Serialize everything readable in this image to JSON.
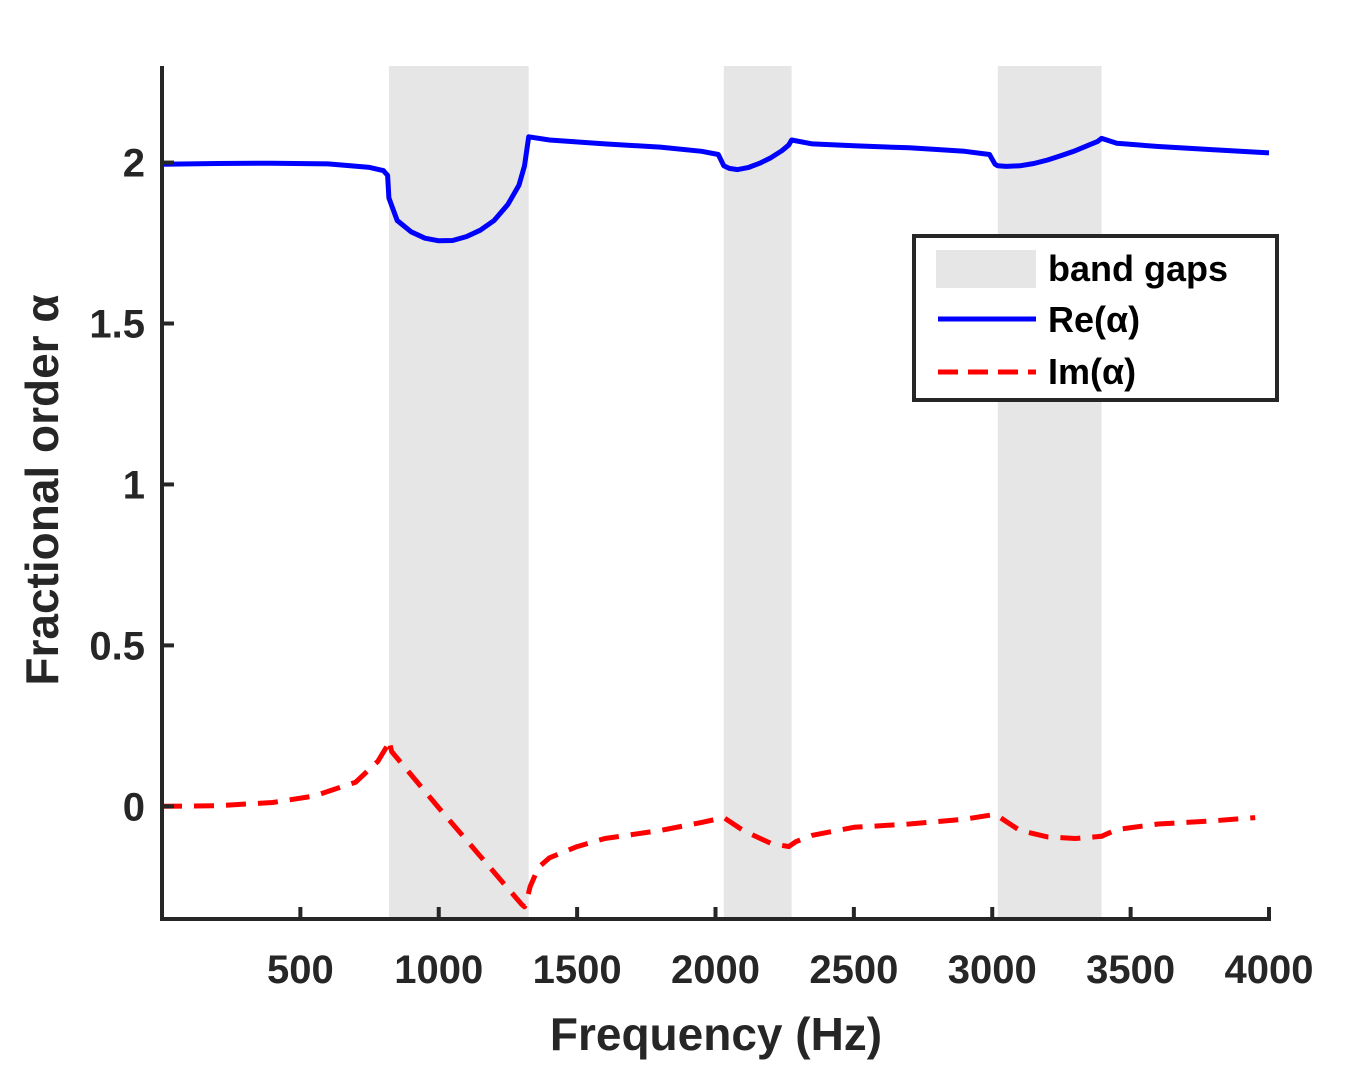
{
  "chart_data": {
    "type": "line",
    "title": "",
    "xlabel": "Frequency (Hz)",
    "ylabel": "Fractional order α",
    "xlim": [
      0,
      4000
    ],
    "ylim": [
      -0.35,
      2.3
    ],
    "xticks": [
      500,
      1000,
      1500,
      2000,
      2500,
      3000,
      3500,
      4000
    ],
    "xtick_labels": [
      "500",
      "1000",
      "1500",
      "2000",
      "2500",
      "3000",
      "3500",
      "4000"
    ],
    "yticks": [
      0,
      0.5,
      1,
      1.5,
      2
    ],
    "ytick_labels": [
      "0",
      "0.5",
      "1",
      "1.5",
      "2"
    ],
    "grid": false,
    "legend_position": "top-right",
    "band_gaps": {
      "name": "band gaps",
      "color": "#e6e6e6",
      "ranges": [
        [
          820,
          1325
        ],
        [
          2030,
          2275
        ],
        [
          3020,
          3395
        ]
      ]
    },
    "series": [
      {
        "name": "Re(α)",
        "color": "#0000ff",
        "style": "solid",
        "x": [
          0,
          200,
          400,
          600,
          750,
          800,
          815,
          820,
          850,
          900,
          950,
          1000,
          1050,
          1100,
          1150,
          1200,
          1250,
          1290,
          1310,
          1325,
          1400,
          1600,
          1800,
          1950,
          2010,
          2030,
          2050,
          2080,
          2120,
          2160,
          2200,
          2240,
          2265,
          2275,
          2350,
          2500,
          2700,
          2900,
          2990,
          3010,
          3020,
          3050,
          3100,
          3150,
          3200,
          3250,
          3300,
          3350,
          3380,
          3395,
          3450,
          3600,
          3800,
          4000
        ],
        "y": [
          1.995,
          1.997,
          1.998,
          1.996,
          1.985,
          1.975,
          1.96,
          1.89,
          1.82,
          1.785,
          1.765,
          1.757,
          1.758,
          1.77,
          1.79,
          1.82,
          1.87,
          1.93,
          1.99,
          2.08,
          2.07,
          2.058,
          2.048,
          2.035,
          2.025,
          1.99,
          1.982,
          1.978,
          1.985,
          1.998,
          2.015,
          2.037,
          2.055,
          2.07,
          2.058,
          2.052,
          2.046,
          2.035,
          2.025,
          1.995,
          1.99,
          1.988,
          1.99,
          1.997,
          2.008,
          2.022,
          2.037,
          2.055,
          2.065,
          2.075,
          2.06,
          2.05,
          2.04,
          2.03
        ]
      },
      {
        "name": "Im(α)",
        "color": "#ff0000",
        "style": "dashed",
        "x": [
          0,
          200,
          400,
          550,
          700,
          780,
          815,
          820,
          830,
          1000,
          1150,
          1250,
          1300,
          1310,
          1320,
          1330,
          1360,
          1400,
          1500,
          1600,
          1800,
          1950,
          2030,
          2100,
          2200,
          2265,
          2290,
          2350,
          2500,
          2700,
          2900,
          3010,
          3020,
          3100,
          3200,
          3300,
          3395,
          3450,
          3600,
          3800,
          3950
        ],
        "y": [
          0.0,
          0.002,
          0.012,
          0.032,
          0.075,
          0.14,
          0.19,
          0.205,
          0.17,
          -0.005,
          -0.155,
          -0.255,
          -0.305,
          -0.312,
          -0.285,
          -0.25,
          -0.19,
          -0.16,
          -0.125,
          -0.1,
          -0.075,
          -0.05,
          -0.035,
          -0.075,
          -0.115,
          -0.125,
          -0.11,
          -0.09,
          -0.065,
          -0.055,
          -0.04,
          -0.025,
          -0.03,
          -0.075,
          -0.095,
          -0.1,
          -0.093,
          -0.072,
          -0.055,
          -0.045,
          -0.035
        ]
      }
    ]
  }
}
